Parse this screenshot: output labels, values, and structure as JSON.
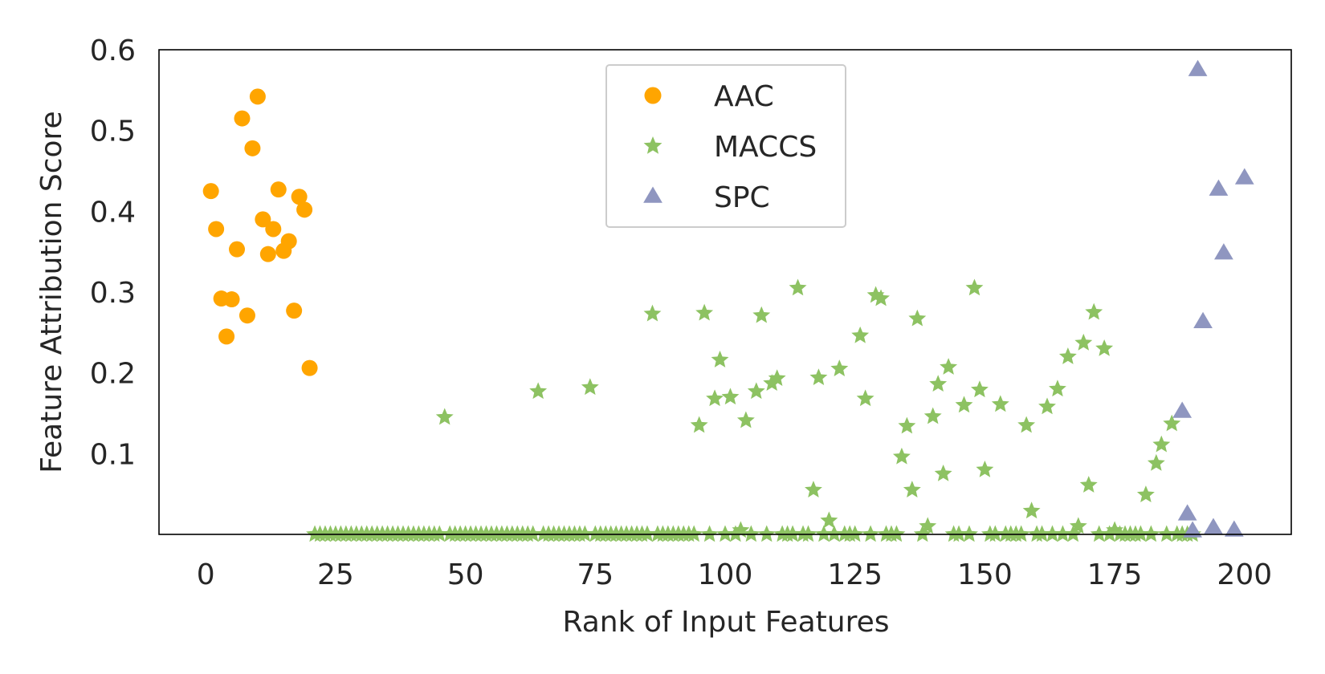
{
  "chart_data": {
    "type": "scatter",
    "xlabel": "Rank of Input Features",
    "ylabel": "Feature Attribution Score",
    "xlim": [
      -9,
      209
    ],
    "ylim": [
      0,
      0.6
    ],
    "x_ticks": [
      0,
      25,
      50,
      75,
      100,
      125,
      150,
      175,
      200
    ],
    "x_tick_labels": [
      "0",
      "25",
      "50",
      "75",
      "100",
      "125",
      "150",
      "175",
      "200"
    ],
    "y_ticks": [
      0.1,
      0.2,
      0.3,
      0.4,
      0.5,
      0.6
    ],
    "y_tick_labels": [
      "0.1",
      "0.2",
      "0.3",
      "0.4",
      "0.5",
      "0.6"
    ],
    "grid": false,
    "legend_position": "top-center",
    "series": [
      {
        "name": "AAC",
        "marker": "circle",
        "color": "#FFA500",
        "points": [
          [
            1,
            0.425
          ],
          [
            2,
            0.378
          ],
          [
            3,
            0.292
          ],
          [
            4,
            0.245
          ],
          [
            5,
            0.291
          ],
          [
            6,
            0.353
          ],
          [
            7,
            0.515
          ],
          [
            8,
            0.271
          ],
          [
            9,
            0.478
          ],
          [
            10,
            0.542
          ],
          [
            11,
            0.39
          ],
          [
            12,
            0.347
          ],
          [
            13,
            0.378
          ],
          [
            14,
            0.427
          ],
          [
            15,
            0.351
          ],
          [
            16,
            0.363
          ],
          [
            17,
            0.277
          ],
          [
            18,
            0.418
          ],
          [
            19,
            0.402
          ],
          [
            20,
            0.206
          ]
        ]
      },
      {
        "name": "MACCS",
        "marker": "star",
        "color": "#8DC262",
        "points": [
          [
            21,
            0
          ],
          [
            22,
            0
          ],
          [
            23,
            0
          ],
          [
            24,
            0
          ],
          [
            25,
            0
          ],
          [
            26,
            0
          ],
          [
            27,
            0
          ],
          [
            28,
            0
          ],
          [
            29,
            0
          ],
          [
            30,
            0
          ],
          [
            31,
            0
          ],
          [
            32,
            0
          ],
          [
            33,
            0
          ],
          [
            34,
            0
          ],
          [
            35,
            0
          ],
          [
            36,
            0
          ],
          [
            37,
            0
          ],
          [
            38,
            0
          ],
          [
            39,
            0
          ],
          [
            40,
            0
          ],
          [
            41,
            0
          ],
          [
            42,
            0
          ],
          [
            43,
            0
          ],
          [
            44,
            0
          ],
          [
            45,
            0
          ],
          [
            46,
            0.145
          ],
          [
            47,
            0
          ],
          [
            48,
            0
          ],
          [
            49,
            0
          ],
          [
            50,
            0
          ],
          [
            51,
            0
          ],
          [
            52,
            0
          ],
          [
            53,
            0
          ],
          [
            54,
            0
          ],
          [
            55,
            0
          ],
          [
            56,
            0
          ],
          [
            57,
            0
          ],
          [
            58,
            0
          ],
          [
            59,
            0
          ],
          [
            60,
            0
          ],
          [
            61,
            0
          ],
          [
            62,
            0
          ],
          [
            63,
            0
          ],
          [
            64,
            0.177
          ],
          [
            65,
            0
          ],
          [
            66,
            0
          ],
          [
            67,
            0
          ],
          [
            68,
            0
          ],
          [
            69,
            0
          ],
          [
            70,
            0
          ],
          [
            71,
            0
          ],
          [
            72,
            0
          ],
          [
            73,
            0
          ],
          [
            74,
            0.182
          ],
          [
            75,
            0
          ],
          [
            76,
            0
          ],
          [
            77,
            0
          ],
          [
            78,
            0
          ],
          [
            79,
            0
          ],
          [
            80,
            0
          ],
          [
            81,
            0
          ],
          [
            82,
            0
          ],
          [
            83,
            0
          ],
          [
            84,
            0
          ],
          [
            85,
            0
          ],
          [
            86,
            0.273
          ],
          [
            87,
            0
          ],
          [
            88,
            0
          ],
          [
            89,
            0
          ],
          [
            90,
            0
          ],
          [
            91,
            0
          ],
          [
            92,
            0
          ],
          [
            93,
            0
          ],
          [
            94,
            0
          ],
          [
            95,
            0.135
          ],
          [
            96,
            0.274
          ],
          [
            97,
            0
          ],
          [
            98,
            0.168
          ],
          [
            99,
            0.216
          ],
          [
            100,
            0
          ],
          [
            101,
            0.17
          ],
          [
            102,
            0
          ],
          [
            103,
            0.005
          ],
          [
            104,
            0.141
          ],
          [
            105,
            0
          ],
          [
            106,
            0.177
          ],
          [
            107,
            0.271
          ],
          [
            108,
            0
          ],
          [
            109,
            0.187
          ],
          [
            110,
            0.193
          ],
          [
            111,
            0
          ],
          [
            112,
            0
          ],
          [
            113,
            0
          ],
          [
            114,
            0.305
          ],
          [
            115,
            0
          ],
          [
            116,
            0
          ],
          [
            117,
            0.055
          ],
          [
            118,
            0.194
          ],
          [
            119,
            0
          ],
          [
            120,
            0.017
          ],
          [
            121,
            0
          ],
          [
            122,
            0.205
          ],
          [
            123,
            0
          ],
          [
            124,
            0
          ],
          [
            125,
            0
          ],
          [
            126,
            0.246
          ],
          [
            127,
            0.168
          ],
          [
            128,
            0
          ],
          [
            129,
            0.296
          ],
          [
            130,
            0.292
          ],
          [
            131,
            0
          ],
          [
            132,
            0
          ],
          [
            133,
            0
          ],
          [
            134,
            0.096
          ],
          [
            135,
            0.134
          ],
          [
            136,
            0.055
          ],
          [
            137,
            0.267
          ],
          [
            138,
            0
          ],
          [
            139,
            0.01
          ],
          [
            140,
            0.146
          ],
          [
            141,
            0.186
          ],
          [
            142,
            0.075
          ],
          [
            143,
            0.207
          ],
          [
            144,
            0
          ],
          [
            145,
            0
          ],
          [
            146,
            0.16
          ],
          [
            147,
            0
          ],
          [
            148,
            0.305
          ],
          [
            149,
            0.179
          ],
          [
            150,
            0.08
          ],
          [
            151,
            0
          ],
          [
            152,
            0
          ],
          [
            153,
            0.161
          ],
          [
            154,
            0
          ],
          [
            155,
            0
          ],
          [
            156,
            0
          ],
          [
            157,
            0
          ],
          [
            158,
            0.135
          ],
          [
            159,
            0.029
          ],
          [
            160,
            0
          ],
          [
            161,
            0
          ],
          [
            162,
            0.158
          ],
          [
            163,
            0
          ],
          [
            164,
            0.18
          ],
          [
            165,
            0
          ],
          [
            166,
            0.22
          ],
          [
            167,
            0
          ],
          [
            168,
            0.01
          ],
          [
            169,
            0.237
          ],
          [
            170,
            0.061
          ],
          [
            171,
            0.275
          ],
          [
            172,
            0
          ],
          [
            173,
            0.23
          ],
          [
            174,
            0
          ],
          [
            175,
            0.005
          ],
          [
            176,
            0
          ],
          [
            177,
            0
          ],
          [
            178,
            0
          ],
          [
            179,
            0
          ],
          [
            180,
            0
          ],
          [
            181,
            0.049
          ],
          [
            182,
            0
          ],
          [
            183,
            0.088
          ],
          [
            184,
            0.111
          ],
          [
            185,
            0
          ],
          [
            186,
            0.137
          ],
          [
            187,
            0
          ],
          [
            188,
            0
          ],
          [
            189,
            0
          ],
          [
            190,
            0
          ]
        ]
      },
      {
        "name": "SPC",
        "marker": "triangle",
        "color": "#8F96C0",
        "points": [
          [
            188,
            0.152
          ],
          [
            189,
            0.025
          ],
          [
            190,
            0.004
          ],
          [
            191,
            0.575
          ],
          [
            192,
            0.263
          ],
          [
            194,
            0.008
          ],
          [
            195,
            0.427
          ],
          [
            196,
            0.348
          ],
          [
            198,
            0.005
          ],
          [
            200,
            0.441
          ]
        ]
      }
    ]
  }
}
